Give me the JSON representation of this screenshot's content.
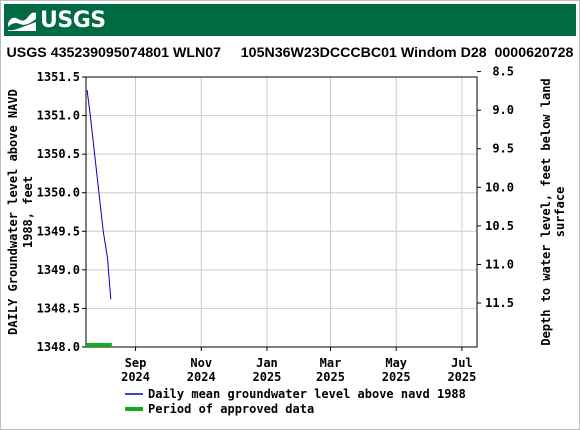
{
  "header": {
    "logo_text": "USGS",
    "title": "USGS 435239095074801 WLN07     105N36W23DCCCBC01 Windom D28  0000620728"
  },
  "colors": {
    "banner": "#006a43",
    "series_line": "#0000cc",
    "approved_bar": "#11aa22",
    "grid": "#cccccc"
  },
  "chart_data": {
    "type": "line",
    "left_axis": {
      "label_line1": "DAILY Groundwater level above NAVD",
      "label_line2": "1988, feet",
      "ylim": [
        1348.0,
        1351.5
      ],
      "ticks": [
        "1348.0",
        "1348.5",
        "1349.0",
        "1349.5",
        "1350.0",
        "1350.5",
        "1351.0",
        "1351.5"
      ],
      "tick_values": [
        1348.0,
        1348.5,
        1349.0,
        1349.5,
        1350.0,
        1350.5,
        1351.0,
        1351.5
      ]
    },
    "right_axis": {
      "label_line1": "Depth to water level, feet below land",
      "label_line2": "surface",
      "ticks": [
        "8.5",
        "9.0",
        "9.5",
        "10.0",
        "10.5",
        "11.0",
        "11.5"
      ],
      "tick_values": [
        8.5,
        9.0,
        9.5,
        10.0,
        10.5,
        11.0,
        11.5
      ],
      "inverted": true,
      "depth_at_1351_5": 8.57
    },
    "x_axis": {
      "xlim": [
        "2024-07-17",
        "2025-07-15"
      ],
      "ticks": [
        {
          "date": "2024-09-01",
          "line1": "Sep",
          "line2": "2024"
        },
        {
          "date": "2024-11-01",
          "line1": "Nov",
          "line2": "2024"
        },
        {
          "date": "2025-01-01",
          "line1": "Jan",
          "line2": "2025"
        },
        {
          "date": "2025-03-01",
          "line1": "Mar",
          "line2": "2025"
        },
        {
          "date": "2025-05-01",
          "line1": "May",
          "line2": "2025"
        },
        {
          "date": "2025-07-01",
          "line1": "Jul",
          "line2": "2025"
        }
      ]
    },
    "series": [
      {
        "name": "Daily mean groundwater level above navd 1988",
        "points": [
          {
            "x": "2024-07-18",
            "y": 1351.33
          },
          {
            "x": "2024-07-21",
            "y": 1351.0
          },
          {
            "x": "2024-07-25",
            "y": 1350.5
          },
          {
            "x": "2024-07-29",
            "y": 1350.0
          },
          {
            "x": "2024-08-02",
            "y": 1349.5
          },
          {
            "x": "2024-08-06",
            "y": 1349.15
          },
          {
            "x": "2024-08-09",
            "y": 1348.62
          }
        ]
      }
    ],
    "approved_period": {
      "name": "Period of approved data",
      "start": "2024-07-17",
      "end": "2024-08-10"
    },
    "grid": true,
    "legend_position": "bottom"
  }
}
